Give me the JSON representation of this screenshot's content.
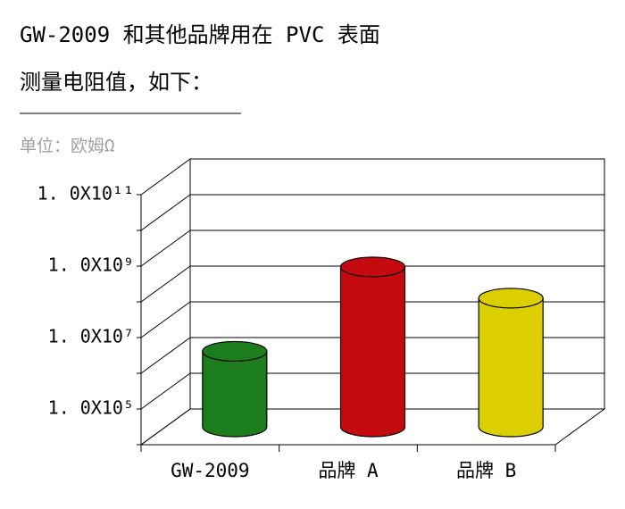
{
  "chart_data": {
    "type": "bar3d",
    "title": "GW-2009 和其他品牌用在 PVC 表面",
    "subtitle": "测量电阻值，如下：",
    "unit": "单位：欧姆Ω",
    "categories": [
      "GW-2009",
      "品牌 A",
      "品牌 B"
    ],
    "series": [
      {
        "name": null,
        "values": [
          1300000,
          300000000,
          40000000
        ],
        "colors": [
          "#1c7d1c",
          "#c40a0e",
          "#dccf00"
        ]
      }
    ],
    "log_scale": true,
    "ylim": [
      10000,
      100000000000
    ],
    "yticks": [
      {
        "value": 100000,
        "label": "1. 0X10⁵"
      },
      {
        "value": 10000000,
        "label": "1. 0X10⁷"
      },
      {
        "value": 1000000000,
        "label": "1. 0X10⁹"
      },
      {
        "value": 100000000000,
        "label": "1. 0X10¹¹"
      }
    ],
    "grid_ticks": [
      10000,
      100000,
      1000000,
      10000000,
      100000000,
      1000000000,
      10000000000,
      100000000000
    ],
    "grid": true
  }
}
